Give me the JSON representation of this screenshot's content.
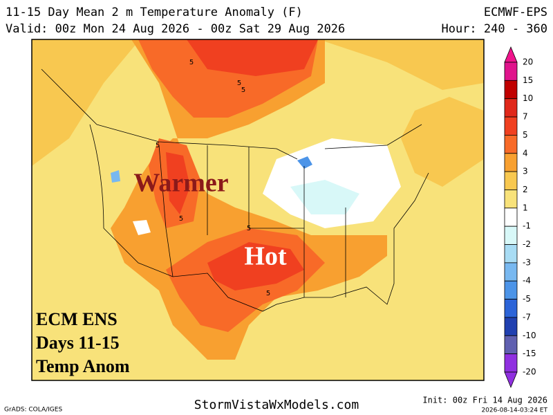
{
  "header": {
    "title": "11-15 Day Mean 2 m Temperature Anomaly (F)",
    "model": "ECMWF-EPS",
    "valid": "Valid: 00z Mon 24 Aug 2026 - 00z Sat 29 Aug 2026",
    "hour": "Hour: 240 - 360"
  },
  "map": {
    "annotations": [
      "Warmer",
      "Hot"
    ],
    "overlay": [
      "ECM ENS",
      "Days 11-15",
      "Temp Anom"
    ],
    "contour_labels": [
      "5",
      "5",
      "5",
      "5",
      "5",
      "5",
      "5"
    ]
  },
  "colorbar": {
    "labels": [
      20,
      15,
      10,
      7,
      5,
      4,
      3,
      2,
      1,
      -1,
      -2,
      -3,
      -4,
      -5,
      -7,
      -10,
      -15,
      -20
    ],
    "colors": [
      "#f0148c",
      "#e0148c",
      "#c00000",
      "#e0281a",
      "#f04020",
      "#f86a28",
      "#f8a030",
      "#f8c850",
      "#f8e27a",
      "#ffffff",
      "#d8f8f8",
      "#a8dcf4",
      "#78b8f0",
      "#4c94e8",
      "#2c64d8",
      "#2040b0",
      "#6060b0",
      "#9030e0",
      "#9030e0"
    ]
  },
  "footer": {
    "software": "GrADS: COLA/IGES",
    "site": "StormVistaWxModels.com",
    "init": "Init: 00z Fri 14 Aug 2026",
    "timestamp": "2026-08-14-03:24 ET"
  }
}
